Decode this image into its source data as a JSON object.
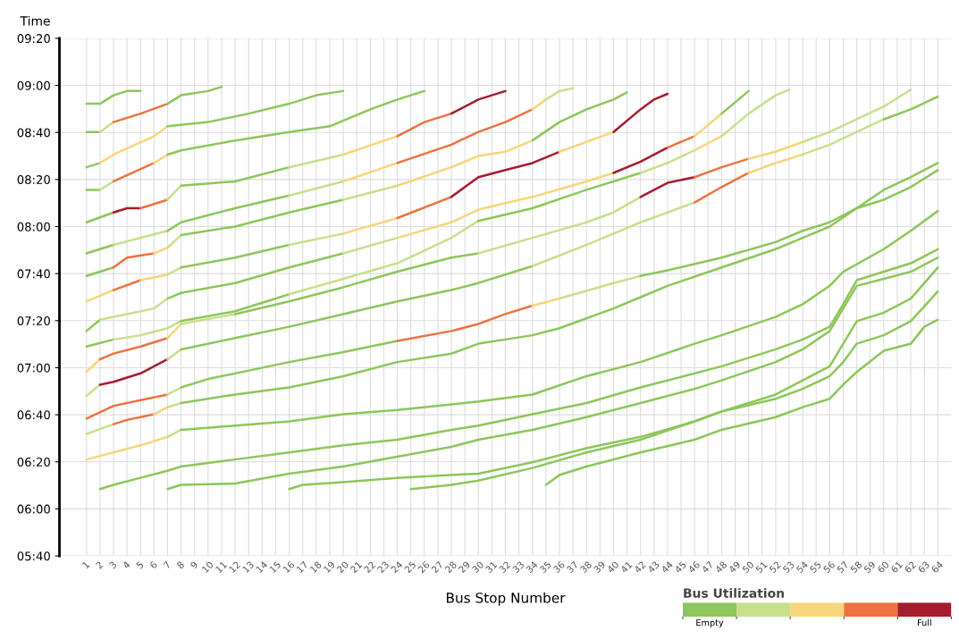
{
  "chart_data": {
    "type": "line",
    "xlabel": "Bus Stop Number",
    "ylabel": "Time",
    "clabel": "Bus Utilization",
    "xlim": [
      -1,
      65
    ],
    "xticks": [
      1,
      2,
      3,
      4,
      5,
      6,
      7,
      8,
      9,
      10,
      11,
      12,
      13,
      14,
      15,
      16,
      17,
      18,
      19,
      20,
      21,
      22,
      23,
      24,
      25,
      26,
      27,
      28,
      29,
      30,
      31,
      32,
      33,
      34,
      35,
      36,
      37,
      38,
      39,
      40,
      41,
      42,
      43,
      44,
      45,
      46,
      47,
      48,
      49,
      50,
      51,
      52,
      53,
      54,
      55,
      56,
      57,
      58,
      59,
      60,
      61,
      62,
      63,
      64
    ],
    "ylim": [
      5.6667,
      9.3333
    ],
    "yticks": [
      {
        "value": 5.6667,
        "label": "05:40"
      },
      {
        "value": 6.0,
        "label": "06:00"
      },
      {
        "value": 6.3333,
        "label": "06:20"
      },
      {
        "value": 6.6667,
        "label": "06:40"
      },
      {
        "value": 7.0,
        "label": "07:00"
      },
      {
        "value": 7.3333,
        "label": "07:20"
      },
      {
        "value": 7.6667,
        "label": "07:40"
      },
      {
        "value": 8.0,
        "label": "08:00"
      },
      {
        "value": 8.3333,
        "label": "08:20"
      },
      {
        "value": 8.6667,
        "label": "08:40"
      },
      {
        "value": 9.0,
        "label": "09:00"
      },
      {
        "value": 9.3333,
        "label": "09:20"
      }
    ],
    "grid": true,
    "colors": [
      "#8dc65a",
      "#c8e08c",
      "#f7d67a",
      "#ee7240",
      "#a51c2c"
    ],
    "clim": [
      0,
      5
    ],
    "cticks": [
      {
        "value": 0.5,
        "label": "Empty"
      },
      {
        "value": 4.5,
        "label": "Full"
      }
    ],
    "series": [
      {
        "color": "#8dc65a",
        "x": [
          1,
          2,
          3,
          4,
          5
        ],
        "values": [
          8.87,
          8.87,
          8.93,
          8.96,
          8.96
        ]
      },
      {
        "color": "#8dc65a",
        "x": [
          1,
          2
        ],
        "values": [
          8.67,
          8.67
        ]
      },
      {
        "color": "#c8e08c",
        "x": [
          2,
          3
        ],
        "values": [
          8.67,
          8.74
        ]
      },
      {
        "color": "#ee7240",
        "x": [
          3,
          5,
          7
        ],
        "values": [
          8.74,
          8.8,
          8.87
        ]
      },
      {
        "color": "#8dc65a",
        "x": [
          7,
          8,
          10,
          11
        ],
        "values": [
          8.87,
          8.93,
          8.96,
          8.99
        ]
      },
      {
        "color": "#8dc65a",
        "x": [
          1,
          2
        ],
        "values": [
          8.42,
          8.45
        ]
      },
      {
        "color": "#f7d67a",
        "x": [
          2,
          3,
          6,
          7
        ],
        "values": [
          8.45,
          8.51,
          8.64,
          8.71
        ]
      },
      {
        "color": "#8dc65a",
        "x": [
          7,
          10,
          13,
          16,
          18,
          20
        ],
        "values": [
          8.71,
          8.74,
          8.8,
          8.87,
          8.93,
          8.96
        ]
      },
      {
        "color": "#8dc65a",
        "x": [
          1,
          2
        ],
        "values": [
          8.26,
          8.26
        ]
      },
      {
        "color": "#c8e08c",
        "x": [
          2,
          3
        ],
        "values": [
          8.26,
          8.32
        ]
      },
      {
        "color": "#ee7240",
        "x": [
          3,
          6
        ],
        "values": [
          8.32,
          8.45
        ]
      },
      {
        "color": "#f7d67a",
        "x": [
          6,
          7
        ],
        "values": [
          8.45,
          8.51
        ]
      },
      {
        "color": "#8dc65a",
        "x": [
          7,
          8,
          12,
          16,
          19,
          22,
          24,
          26
        ],
        "values": [
          8.51,
          8.54,
          8.61,
          8.67,
          8.71,
          8.83,
          8.9,
          8.96
        ]
      },
      {
        "color": "#8dc65a",
        "x": [
          1,
          3
        ],
        "values": [
          8.03,
          8.1
        ]
      },
      {
        "color": "#a51c2c",
        "x": [
          3,
          4,
          5
        ],
        "values": [
          8.1,
          8.13,
          8.13
        ]
      },
      {
        "color": "#ee7240",
        "x": [
          5,
          7
        ],
        "values": [
          8.13,
          8.19
        ]
      },
      {
        "color": "#c8e08c",
        "x": [
          7,
          8
        ],
        "values": [
          8.19,
          8.29
        ]
      },
      {
        "color": "#8dc65a",
        "x": [
          8,
          12,
          16
        ],
        "values": [
          8.29,
          8.32,
          8.42
        ]
      },
      {
        "color": "#c8e08c",
        "x": [
          16,
          20
        ],
        "values": [
          8.42,
          8.51
        ]
      },
      {
        "color": "#f7d67a",
        "x": [
          20,
          24
        ],
        "values": [
          8.51,
          8.64
        ]
      },
      {
        "color": "#ee7240",
        "x": [
          24,
          26,
          28
        ],
        "values": [
          8.64,
          8.74,
          8.8
        ]
      },
      {
        "color": "#a51c2c",
        "x": [
          28,
          30,
          32
        ],
        "values": [
          8.8,
          8.9,
          8.96
        ]
      },
      {
        "color": "#8dc65a",
        "x": [
          1,
          3
        ],
        "values": [
          7.81,
          7.87
        ]
      },
      {
        "color": "#c8e08c",
        "x": [
          3,
          7
        ],
        "values": [
          7.87,
          7.97
        ]
      },
      {
        "color": "#8dc65a",
        "x": [
          7,
          8,
          12,
          16
        ],
        "values": [
          7.97,
          8.03,
          8.13,
          8.22
        ]
      },
      {
        "color": "#c8e08c",
        "x": [
          16,
          20
        ],
        "values": [
          8.22,
          8.32
        ]
      },
      {
        "color": "#f7d67a",
        "x": [
          20,
          24
        ],
        "values": [
          8.32,
          8.45
        ]
      },
      {
        "color": "#ee7240",
        "x": [
          24,
          28,
          30,
          32,
          34
        ],
        "values": [
          8.45,
          8.58,
          8.67,
          8.74,
          8.83
        ]
      },
      {
        "color": "#f7d67a",
        "x": [
          34,
          35
        ],
        "values": [
          8.83,
          8.9
        ]
      },
      {
        "color": "#c8e08c",
        "x": [
          35,
          36,
          37
        ],
        "values": [
          8.9,
          8.96,
          8.98
        ]
      },
      {
        "color": "#8dc65a",
        "x": [
          1,
          3
        ],
        "values": [
          7.65,
          7.71
        ]
      },
      {
        "color": "#ee7240",
        "x": [
          3,
          4,
          6
        ],
        "values": [
          7.71,
          7.78,
          7.81
        ]
      },
      {
        "color": "#f7d67a",
        "x": [
          6,
          7
        ],
        "values": [
          7.81,
          7.85
        ]
      },
      {
        "color": "#c8e08c",
        "x": [
          7,
          8
        ],
        "values": [
          7.85,
          7.94
        ]
      },
      {
        "color": "#8dc65a",
        "x": [
          8,
          12,
          16,
          20
        ],
        "values": [
          7.94,
          8.0,
          8.1,
          8.19
        ]
      },
      {
        "color": "#c8e08c",
        "x": [
          20,
          24
        ],
        "values": [
          8.19,
          8.29
        ]
      },
      {
        "color": "#f7d67a",
        "x": [
          24,
          28,
          30,
          32,
          34
        ],
        "values": [
          8.29,
          8.42,
          8.5,
          8.53,
          8.61
        ]
      },
      {
        "color": "#8dc65a",
        "x": [
          34,
          36,
          38,
          40,
          41
        ],
        "values": [
          8.61,
          8.74,
          8.83,
          8.9,
          8.95
        ]
      },
      {
        "color": "#f7d67a",
        "x": [
          1,
          3
        ],
        "values": [
          7.47,
          7.55
        ]
      },
      {
        "color": "#ee7240",
        "x": [
          3,
          5
        ],
        "values": [
          7.55,
          7.62
        ]
      },
      {
        "color": "#f7d67a",
        "x": [
          5,
          7
        ],
        "values": [
          7.62,
          7.66
        ]
      },
      {
        "color": "#c8e08c",
        "x": [
          7,
          8
        ],
        "values": [
          7.66,
          7.71
        ]
      },
      {
        "color": "#8dc65a",
        "x": [
          8,
          12,
          16
        ],
        "values": [
          7.71,
          7.78,
          7.87
        ]
      },
      {
        "color": "#c8e08c",
        "x": [
          16,
          20
        ],
        "values": [
          7.87,
          7.95
        ]
      },
      {
        "color": "#f7d67a",
        "x": [
          20,
          24
        ],
        "values": [
          7.95,
          8.06
        ]
      },
      {
        "color": "#ee7240",
        "x": [
          24,
          28
        ],
        "values": [
          8.06,
          8.21
        ]
      },
      {
        "color": "#a51c2c",
        "x": [
          28,
          30,
          32,
          34,
          36
        ],
        "values": [
          8.21,
          8.35,
          8.4,
          8.45,
          8.53
        ]
      },
      {
        "color": "#f7d67a",
        "x": [
          36,
          38,
          40
        ],
        "values": [
          8.53,
          8.6,
          8.67
        ]
      },
      {
        "color": "#a51c2c",
        "x": [
          40,
          42,
          43,
          44
        ],
        "values": [
          8.67,
          8.83,
          8.9,
          8.94
        ]
      },
      {
        "color": "#8dc65a",
        "x": [
          1,
          2
        ],
        "values": [
          7.26,
          7.34
        ]
      },
      {
        "color": "#c8e08c",
        "x": [
          2,
          4,
          6,
          7
        ],
        "values": [
          7.34,
          7.38,
          7.42,
          7.49
        ]
      },
      {
        "color": "#8dc65a",
        "x": [
          7,
          8,
          12,
          16,
          20
        ],
        "values": [
          7.49,
          7.53,
          7.6,
          7.71,
          7.81
        ]
      },
      {
        "color": "#c8e08c",
        "x": [
          20,
          24
        ],
        "values": [
          7.81,
          7.92
        ]
      },
      {
        "color": "#f7d67a",
        "x": [
          24,
          28,
          30,
          34,
          38,
          40
        ],
        "values": [
          7.92,
          8.03,
          8.12,
          8.21,
          8.32,
          8.38
        ]
      },
      {
        "color": "#a51c2c",
        "x": [
          40,
          42,
          44
        ],
        "values": [
          8.38,
          8.46,
          8.56
        ]
      },
      {
        "color": "#ee7240",
        "x": [
          44,
          46
        ],
        "values": [
          8.56,
          8.64
        ]
      },
      {
        "color": "#f7d67a",
        "x": [
          46,
          48
        ],
        "values": [
          8.64,
          8.8
        ]
      },
      {
        "color": "#8dc65a",
        "x": [
          48,
          50
        ],
        "values": [
          8.8,
          8.96
        ]
      },
      {
        "color": "#8dc65a",
        "x": [
          1,
          3
        ],
        "values": [
          7.15,
          7.2
        ]
      },
      {
        "color": "#c8e08c",
        "x": [
          3,
          5,
          7,
          8
        ],
        "values": [
          7.2,
          7.23,
          7.28,
          7.33
        ]
      },
      {
        "color": "#8dc65a",
        "x": [
          8,
          12,
          16
        ],
        "values": [
          7.33,
          7.4,
          7.52
        ]
      },
      {
        "color": "#c8e08c",
        "x": [
          16,
          20,
          24,
          28,
          30
        ],
        "values": [
          7.52,
          7.63,
          7.74,
          7.92,
          8.04
        ]
      },
      {
        "color": "#8dc65a",
        "x": [
          30,
          34,
          38,
          42
        ],
        "values": [
          8.04,
          8.13,
          8.26,
          8.38
        ]
      },
      {
        "color": "#c8e08c",
        "x": [
          42,
          44,
          46
        ],
        "values": [
          8.38,
          8.45,
          8.54
        ]
      },
      {
        "color": "#f7d67a",
        "x": [
          46,
          48
        ],
        "values": [
          8.54,
          8.64
        ]
      },
      {
        "color": "#c8e08c",
        "x": [
          48,
          50,
          52,
          53
        ],
        "values": [
          8.64,
          8.8,
          8.93,
          8.97
        ]
      },
      {
        "color": "#f7d67a",
        "x": [
          1,
          2
        ],
        "values": [
          6.97,
          7.06
        ]
      },
      {
        "color": "#ee7240",
        "x": [
          2,
          3,
          5,
          7
        ],
        "values": [
          7.06,
          7.1,
          7.15,
          7.21
        ]
      },
      {
        "color": "#f7d67a",
        "x": [
          7,
          8
        ],
        "values": [
          7.21,
          7.31
        ]
      },
      {
        "color": "#c8e08c",
        "x": [
          8,
          12
        ],
        "values": [
          7.31,
          7.38
        ]
      },
      {
        "color": "#8dc65a",
        "x": [
          12,
          16,
          20,
          24,
          28,
          30
        ],
        "values": [
          7.38,
          7.47,
          7.57,
          7.68,
          7.78,
          7.81
        ]
      },
      {
        "color": "#c8e08c",
        "x": [
          30,
          34,
          38,
          40,
          42
        ],
        "values": [
          7.81,
          7.92,
          8.03,
          8.1,
          8.21
        ]
      },
      {
        "color": "#a51c2c",
        "x": [
          42,
          44,
          46
        ],
        "values": [
          8.21,
          8.31,
          8.35
        ]
      },
      {
        "color": "#ee7240",
        "x": [
          46,
          48,
          50
        ],
        "values": [
          8.35,
          8.42,
          8.48
        ]
      },
      {
        "color": "#f7d67a",
        "x": [
          50,
          52,
          54
        ],
        "values": [
          8.48,
          8.53,
          8.6
        ]
      },
      {
        "color": "#c8e08c",
        "x": [
          54,
          56,
          58,
          60,
          62
        ],
        "values": [
          8.6,
          8.67,
          8.76,
          8.85,
          8.97
        ]
      },
      {
        "color": "#c8e08c",
        "x": [
          1,
          2
        ],
        "values": [
          6.8,
          6.88
        ]
      },
      {
        "color": "#a51c2c",
        "x": [
          2,
          3,
          5,
          7
        ],
        "values": [
          6.88,
          6.9,
          6.96,
          7.06
        ]
      },
      {
        "color": "#c8e08c",
        "x": [
          7,
          8
        ],
        "values": [
          7.06,
          7.13
        ]
      },
      {
        "color": "#8dc65a",
        "x": [
          8,
          12,
          16,
          20,
          24,
          28,
          30,
          34
        ],
        "values": [
          7.13,
          7.21,
          7.29,
          7.38,
          7.47,
          7.55,
          7.6,
          7.72
        ]
      },
      {
        "color": "#c8e08c",
        "x": [
          34,
          38,
          40,
          42,
          44,
          46
        ],
        "values": [
          7.72,
          7.87,
          7.95,
          8.03,
          8.1,
          8.17
        ]
      },
      {
        "color": "#ee7240",
        "x": [
          46,
          48,
          50
        ],
        "values": [
          8.17,
          8.28,
          8.38
        ]
      },
      {
        "color": "#f7d67a",
        "x": [
          50,
          52,
          54
        ],
        "values": [
          8.38,
          8.45,
          8.51
        ]
      },
      {
        "color": "#c8e08c",
        "x": [
          54,
          56,
          58,
          60
        ],
        "values": [
          8.51,
          8.58,
          8.67,
          8.76
        ]
      },
      {
        "color": "#8dc65a",
        "x": [
          60,
          62,
          64
        ],
        "values": [
          8.76,
          8.83,
          8.92
        ]
      },
      {
        "color": "#ee7240",
        "x": [
          1,
          3,
          5,
          7
        ],
        "values": [
          6.64,
          6.73,
          6.77,
          6.81
        ]
      },
      {
        "color": "#c8e08c",
        "x": [
          7,
          8
        ],
        "values": [
          6.81,
          6.86
        ]
      },
      {
        "color": "#8dc65a",
        "x": [
          8,
          10,
          16,
          20,
          24
        ],
        "values": [
          6.86,
          6.92,
          7.04,
          7.11,
          7.19
        ]
      },
      {
        "color": "#ee7240",
        "x": [
          24,
          28,
          30,
          32,
          34
        ],
        "values": [
          7.19,
          7.26,
          7.31,
          7.38,
          7.44
        ]
      },
      {
        "color": "#f7d67a",
        "x": [
          34,
          36
        ],
        "values": [
          7.44,
          7.49
        ]
      },
      {
        "color": "#c8e08c",
        "x": [
          36,
          40,
          42
        ],
        "values": [
          7.49,
          7.6,
          7.65
        ]
      },
      {
        "color": "#8dc65a",
        "x": [
          42,
          44,
          48,
          52,
          54,
          56,
          58,
          60,
          62,
          64
        ],
        "values": [
          7.65,
          7.69,
          7.78,
          7.89,
          7.97,
          8.03,
          8.13,
          8.26,
          8.35,
          8.45
        ]
      },
      {
        "color": "#c8e08c",
        "x": [
          1,
          3
        ],
        "values": [
          6.53,
          6.6
        ]
      },
      {
        "color": "#ee7240",
        "x": [
          3,
          4,
          6
        ],
        "values": [
          6.6,
          6.63,
          6.67
        ]
      },
      {
        "color": "#f7d67a",
        "x": [
          6,
          7
        ],
        "values": [
          6.67,
          6.72
        ]
      },
      {
        "color": "#c8e08c",
        "x": [
          7,
          8
        ],
        "values": [
          6.72,
          6.75
        ]
      },
      {
        "color": "#8dc65a",
        "x": [
          8,
          12,
          16,
          20,
          24,
          28,
          30,
          34,
          36,
          40,
          42,
          44,
          48,
          52,
          54,
          56,
          58,
          60,
          62,
          64
        ],
        "values": [
          6.75,
          6.81,
          6.86,
          6.94,
          7.04,
          7.1,
          7.17,
          7.23,
          7.28,
          7.42,
          7.5,
          7.58,
          7.71,
          7.84,
          7.92,
          8.0,
          8.13,
          8.19,
          8.28,
          8.4
        ]
      },
      {
        "color": "#f7d67a",
        "x": [
          1,
          3,
          5,
          7
        ],
        "values": [
          6.35,
          6.4,
          6.45,
          6.51
        ]
      },
      {
        "color": "#c8e08c",
        "x": [
          7,
          8
        ],
        "values": [
          6.51,
          6.56
        ]
      },
      {
        "color": "#8dc65a",
        "x": [
          8,
          12,
          16,
          20,
          24,
          28,
          30,
          34,
          38,
          42,
          46,
          48,
          52,
          54,
          56,
          57,
          60,
          62,
          64
        ],
        "values": [
          6.56,
          6.59,
          6.62,
          6.67,
          6.7,
          6.74,
          6.76,
          6.81,
          6.94,
          7.04,
          7.17,
          7.23,
          7.36,
          7.45,
          7.58,
          7.68,
          7.84,
          7.97,
          8.11
        ]
      },
      {
        "color": "#8dc65a",
        "x": [
          2,
          3,
          5,
          7,
          8,
          12,
          16,
          20,
          24,
          28,
          30,
          34,
          38,
          42,
          46,
          48,
          52,
          54,
          56,
          57,
          58,
          60,
          62,
          64
        ],
        "values": [
          6.14,
          6.17,
          6.22,
          6.27,
          6.3,
          6.35,
          6.4,
          6.45,
          6.49,
          6.56,
          6.59,
          6.67,
          6.75,
          6.86,
          6.96,
          7.01,
          7.13,
          7.2,
          7.29,
          7.45,
          7.62,
          7.68,
          7.74,
          7.84
        ]
      },
      {
        "color": "#8dc65a",
        "x": [
          7,
          8,
          12,
          16,
          20,
          24,
          28,
          30,
          34,
          38,
          42,
          46,
          48,
          52,
          54,
          56,
          57,
          58,
          60,
          62,
          64
        ],
        "values": [
          6.14,
          6.17,
          6.18,
          6.25,
          6.3,
          6.37,
          6.44,
          6.49,
          6.56,
          6.65,
          6.75,
          6.85,
          6.91,
          7.04,
          7.13,
          7.26,
          7.42,
          7.58,
          7.63,
          7.68,
          7.78
        ]
      },
      {
        "color": "#8dc65a",
        "x": [
          16,
          17,
          20,
          24,
          28,
          30,
          34,
          38,
          42,
          46,
          48,
          52,
          54,
          56,
          57,
          58,
          60,
          62,
          64
        ],
        "values": [
          6.14,
          6.17,
          6.19,
          6.22,
          6.24,
          6.25,
          6.33,
          6.43,
          6.51,
          6.62,
          6.69,
          6.81,
          6.91,
          7.01,
          7.17,
          7.33,
          7.39,
          7.49,
          7.71
        ]
      },
      {
        "color": "#8dc65a",
        "x": [
          25,
          26,
          28,
          30,
          34,
          38,
          42,
          46,
          48,
          52,
          54,
          56,
          57,
          58,
          60,
          62,
          64
        ],
        "values": [
          6.14,
          6.15,
          6.17,
          6.2,
          6.29,
          6.4,
          6.49,
          6.62,
          6.69,
          6.78,
          6.85,
          6.94,
          7.04,
          7.17,
          7.23,
          7.33,
          7.54
        ]
      },
      {
        "color": "#8dc65a",
        "x": [
          35,
          36,
          38,
          42,
          46,
          48,
          52,
          54,
          56,
          57,
          58,
          60,
          62,
          63,
          64
        ],
        "values": [
          6.17,
          6.24,
          6.3,
          6.4,
          6.49,
          6.56,
          6.65,
          6.72,
          6.78,
          6.88,
          6.97,
          7.12,
          7.17,
          7.29,
          7.34
        ]
      }
    ]
  }
}
